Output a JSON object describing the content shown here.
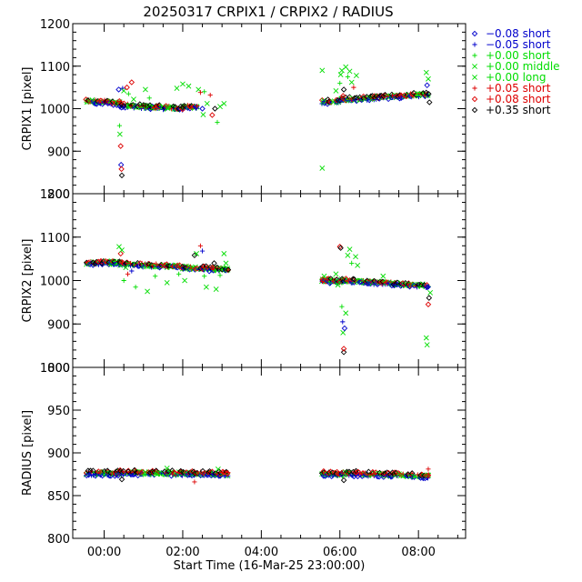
{
  "chart_data": {
    "type": "scatter",
    "title": "20250317 CRPIX1 / CRPIX2 / RADIUS",
    "xlabel": "Start Time (16-Mar-25 23:00:00)",
    "x_unit": "hours since 16-Mar-25 23:00:00",
    "xlim": [
      0.2,
      10.2
    ],
    "x_ticks": [
      {
        "value": 1,
        "label": "00:00"
      },
      {
        "value": 3,
        "label": "02:00"
      },
      {
        "value": 5,
        "label": "04:00"
      },
      {
        "value": 7,
        "label": "06:00"
      },
      {
        "value": 9,
        "label": "08:00"
      }
    ],
    "legend": {
      "placement": "right",
      "entries": [
        {
          "symbol": "diamond",
          "label": "−0.08 short",
          "color": "#0000cc"
        },
        {
          "symbol": "plus",
          "label": "−0.05 short",
          "color": "#0000cc"
        },
        {
          "symbol": "plus",
          "label": "+0.00 short",
          "color": "#00dd00"
        },
        {
          "symbol": "cross",
          "label": "+0.00 middle",
          "color": "#00dd00"
        },
        {
          "symbol": "cross",
          "label": "+0.00 long",
          "color": "#00dd00"
        },
        {
          "symbol": "plus",
          "label": "+0.05 short",
          "color": "#dd0000"
        },
        {
          "symbol": "diamond",
          "label": "+0.08 short",
          "color": "#dd0000"
        },
        {
          "symbol": "diamond",
          "label": "+0.35 short",
          "color": "#000000"
        }
      ]
    },
    "panels": [
      {
        "ylabel": "CRPIX1 [pixel]",
        "ylim": [
          800,
          1200
        ],
        "yticks": [
          800,
          900,
          1000,
          1100,
          1200
        ],
        "segments": [
          {
            "x0": 0.55,
            "x1": 1.4,
            "y0": 1018,
            "y1": 1013
          },
          {
            "x0": 1.4,
            "x1": 3.0,
            "y0": 1008,
            "y1": 1000
          },
          {
            "x0": 3.0,
            "x1": 3.35,
            "y0": 1003,
            "y1": 1005
          },
          {
            "x0": 6.55,
            "x1": 7.05,
            "y0": 1015,
            "y1": 1019
          },
          {
            "x0": 7.05,
            "x1": 9.25,
            "y0": 1021,
            "y1": 1034
          }
        ],
        "outliers": [
          {
            "x": 1.37,
            "y": 1045,
            "s": 0
          },
          {
            "x": 1.39,
            "y": 960,
            "s": 2
          },
          {
            "x": 1.4,
            "y": 940,
            "s": 3
          },
          {
            "x": 1.42,
            "y": 912,
            "s": 6
          },
          {
            "x": 1.43,
            "y": 868,
            "s": 0
          },
          {
            "x": 1.44,
            "y": 858,
            "s": 6
          },
          {
            "x": 1.45,
            "y": 843,
            "s": 7
          },
          {
            "x": 1.47,
            "y": 1048,
            "s": 1
          },
          {
            "x": 1.5,
            "y": 1042,
            "s": 3
          },
          {
            "x": 1.58,
            "y": 1050,
            "s": 6
          },
          {
            "x": 1.62,
            "y": 1035,
            "s": 2
          },
          {
            "x": 1.7,
            "y": 1062,
            "s": 6
          },
          {
            "x": 1.75,
            "y": 1022,
            "s": 4
          },
          {
            "x": 2.05,
            "y": 1045,
            "s": 3
          },
          {
            "x": 2.15,
            "y": 1025,
            "s": 2
          },
          {
            "x": 2.85,
            "y": 1048,
            "s": 3
          },
          {
            "x": 3.0,
            "y": 1058,
            "s": 4
          },
          {
            "x": 3.15,
            "y": 1053,
            "s": 3
          },
          {
            "x": 3.4,
            "y": 1045,
            "s": 3
          },
          {
            "x": 3.45,
            "y": 1038,
            "s": 5
          },
          {
            "x": 3.5,
            "y": 1000,
            "s": 0
          },
          {
            "x": 3.52,
            "y": 986,
            "s": 3
          },
          {
            "x": 3.55,
            "y": 1040,
            "s": 2
          },
          {
            "x": 3.62,
            "y": 1012,
            "s": 4
          },
          {
            "x": 3.7,
            "y": 1032,
            "s": 5
          },
          {
            "x": 3.75,
            "y": 985,
            "s": 6
          },
          {
            "x": 3.82,
            "y": 1000,
            "s": 7
          },
          {
            "x": 3.88,
            "y": 968,
            "s": 2
          },
          {
            "x": 3.95,
            "y": 1005,
            "s": 3
          },
          {
            "x": 4.05,
            "y": 1012,
            "s": 4
          },
          {
            "x": 6.55,
            "y": 1090,
            "s": 3
          },
          {
            "x": 6.55,
            "y": 860,
            "s": 4
          },
          {
            "x": 6.9,
            "y": 1042,
            "s": 3
          },
          {
            "x": 7.0,
            "y": 1060,
            "s": 2
          },
          {
            "x": 7.02,
            "y": 1080,
            "s": 3
          },
          {
            "x": 7.05,
            "y": 1090,
            "s": 4
          },
          {
            "x": 7.08,
            "y": 1030,
            "s": 6
          },
          {
            "x": 7.1,
            "y": 1045,
            "s": 7
          },
          {
            "x": 7.15,
            "y": 1098,
            "s": 3
          },
          {
            "x": 7.2,
            "y": 1075,
            "s": 2
          },
          {
            "x": 7.25,
            "y": 1088,
            "s": 4
          },
          {
            "x": 7.3,
            "y": 1062,
            "s": 3
          },
          {
            "x": 7.35,
            "y": 1050,
            "s": 5
          },
          {
            "x": 7.42,
            "y": 1078,
            "s": 4
          },
          {
            "x": 9.2,
            "y": 1085,
            "s": 3
          },
          {
            "x": 9.22,
            "y": 1055,
            "s": 0
          },
          {
            "x": 9.25,
            "y": 1070,
            "s": 4
          },
          {
            "x": 9.28,
            "y": 1015,
            "s": 7
          }
        ]
      },
      {
        "ylabel": "CRPIX2 [pixel]",
        "ylim": [
          800,
          1200
        ],
        "yticks": [
          800,
          900,
          1000,
          1100,
          1200
        ],
        "segments": [
          {
            "x0": 0.55,
            "x1": 1.4,
            "y0": 1040,
            "y1": 1042
          },
          {
            "x0": 1.4,
            "x1": 3.0,
            "y0": 1038,
            "y1": 1032
          },
          {
            "x0": 3.0,
            "x1": 4.15,
            "y0": 1030,
            "y1": 1025
          },
          {
            "x0": 6.55,
            "x1": 7.05,
            "y0": 1000,
            "y1": 998
          },
          {
            "x0": 7.05,
            "x1": 9.25,
            "y0": 1000,
            "y1": 988
          }
        ],
        "outliers": [
          {
            "x": 1.38,
            "y": 1078,
            "s": 3
          },
          {
            "x": 1.42,
            "y": 1062,
            "s": 6
          },
          {
            "x": 1.45,
            "y": 1070,
            "s": 4
          },
          {
            "x": 1.5,
            "y": 1000,
            "s": 2
          },
          {
            "x": 1.55,
            "y": 1030,
            "s": 3
          },
          {
            "x": 1.6,
            "y": 1015,
            "s": 5
          },
          {
            "x": 1.7,
            "y": 1022,
            "s": 1
          },
          {
            "x": 1.8,
            "y": 985,
            "s": 2
          },
          {
            "x": 2.1,
            "y": 975,
            "s": 3
          },
          {
            "x": 2.3,
            "y": 1010,
            "s": 2
          },
          {
            "x": 2.6,
            "y": 995,
            "s": 3
          },
          {
            "x": 2.9,
            "y": 1015,
            "s": 2
          },
          {
            "x": 3.05,
            "y": 1000,
            "s": 3
          },
          {
            "x": 3.3,
            "y": 1058,
            "s": 7
          },
          {
            "x": 3.35,
            "y": 1062,
            "s": 4
          },
          {
            "x": 3.45,
            "y": 1080,
            "s": 5
          },
          {
            "x": 3.5,
            "y": 1068,
            "s": 1
          },
          {
            "x": 3.55,
            "y": 1010,
            "s": 2
          },
          {
            "x": 3.6,
            "y": 985,
            "s": 3
          },
          {
            "x": 3.75,
            "y": 1030,
            "s": 6
          },
          {
            "x": 3.8,
            "y": 1040,
            "s": 7
          },
          {
            "x": 3.85,
            "y": 980,
            "s": 3
          },
          {
            "x": 3.95,
            "y": 1012,
            "s": 2
          },
          {
            "x": 4.05,
            "y": 1062,
            "s": 3
          },
          {
            "x": 4.1,
            "y": 1040,
            "s": 4
          },
          {
            "x": 6.6,
            "y": 1010,
            "s": 3
          },
          {
            "x": 6.9,
            "y": 1015,
            "s": 4
          },
          {
            "x": 6.95,
            "y": 990,
            "s": 3
          },
          {
            "x": 7.0,
            "y": 1078,
            "s": 6
          },
          {
            "x": 7.02,
            "y": 1075,
            "s": 7
          },
          {
            "x": 7.05,
            "y": 940,
            "s": 2
          },
          {
            "x": 7.07,
            "y": 905,
            "s": 1
          },
          {
            "x": 7.08,
            "y": 880,
            "s": 3
          },
          {
            "x": 7.1,
            "y": 835,
            "s": 7
          },
          {
            "x": 7.1,
            "y": 843,
            "s": 6
          },
          {
            "x": 7.12,
            "y": 890,
            "s": 0
          },
          {
            "x": 7.15,
            "y": 925,
            "s": 4
          },
          {
            "x": 7.2,
            "y": 1058,
            "s": 3
          },
          {
            "x": 7.25,
            "y": 1072,
            "s": 4
          },
          {
            "x": 7.3,
            "y": 1040,
            "s": 2
          },
          {
            "x": 7.4,
            "y": 1055,
            "s": 3
          },
          {
            "x": 7.45,
            "y": 1035,
            "s": 4
          },
          {
            "x": 8.1,
            "y": 1010,
            "s": 3
          },
          {
            "x": 9.2,
            "y": 868,
            "s": 3
          },
          {
            "x": 9.22,
            "y": 852,
            "s": 4
          },
          {
            "x": 9.25,
            "y": 945,
            "s": 6
          },
          {
            "x": 9.27,
            "y": 960,
            "s": 7
          },
          {
            "x": 9.3,
            "y": 972,
            "s": 3
          }
        ]
      },
      {
        "ylabel": "RADIUS [pixel]",
        "ylim": [
          800,
          1000
        ],
        "yticks": [
          800,
          850,
          900,
          950,
          1000
        ],
        "segments": [
          {
            "x0": 0.55,
            "x1": 1.4,
            "y0": 876,
            "y1": 876
          },
          {
            "x0": 1.4,
            "x1": 3.0,
            "y0": 877,
            "y1": 876
          },
          {
            "x0": 3.0,
            "x1": 4.15,
            "y0": 876,
            "y1": 875
          },
          {
            "x0": 6.55,
            "x1": 7.05,
            "y0": 876,
            "y1": 875
          },
          {
            "x0": 7.05,
            "x1": 9.25,
            "y0": 876,
            "y1": 873
          }
        ],
        "outliers": [
          {
            "x": 3.3,
            "y": 866,
            "s": 5
          },
          {
            "x": 9.25,
            "y": 881,
            "s": 5
          },
          {
            "x": 7.1,
            "y": 868,
            "s": 7
          },
          {
            "x": 1.45,
            "y": 869,
            "s": 7
          },
          {
            "x": 2.6,
            "y": 882,
            "s": 3
          },
          {
            "x": 3.9,
            "y": 881,
            "s": 4
          }
        ]
      }
    ]
  }
}
